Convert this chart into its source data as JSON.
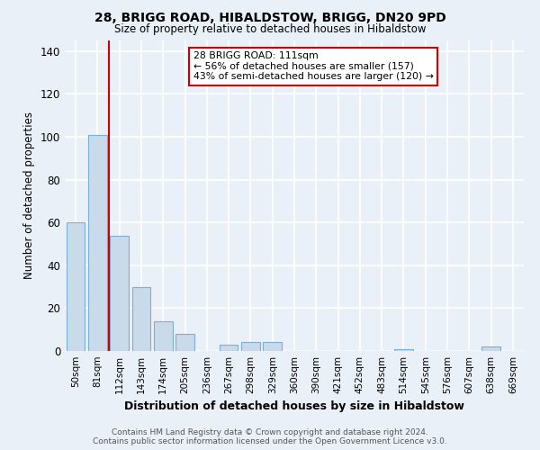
{
  "title": "28, BRIGG ROAD, HIBALDSTOW, BRIGG, DN20 9PD",
  "subtitle": "Size of property relative to detached houses in Hibaldstow",
  "xlabel": "Distribution of detached houses by size in Hibaldstow",
  "ylabel": "Number of detached properties",
  "categories": [
    "50sqm",
    "81sqm",
    "112sqm",
    "143sqm",
    "174sqm",
    "205sqm",
    "236sqm",
    "267sqm",
    "298sqm",
    "329sqm",
    "360sqm",
    "390sqm",
    "421sqm",
    "452sqm",
    "483sqm",
    "514sqm",
    "545sqm",
    "576sqm",
    "607sqm",
    "638sqm",
    "669sqm"
  ],
  "values": [
    60,
    101,
    54,
    30,
    14,
    8,
    0,
    3,
    4,
    4,
    0,
    0,
    0,
    0,
    0,
    1,
    0,
    0,
    0,
    2,
    0
  ],
  "bar_color": "#c9daea",
  "bar_edge_color": "#7bafd4",
  "vline_color": "#cc0000",
  "vline_x_index": 2,
  "annotation_box_text": "28 BRIGG ROAD: 111sqm\n← 56% of detached houses are smaller (157)\n43% of semi-detached houses are larger (120) →",
  "ylim": [
    0,
    145
  ],
  "yticks": [
    0,
    20,
    40,
    60,
    80,
    100,
    120,
    140
  ],
  "background_color": "#eaf0f8",
  "grid_color": "#ffffff",
  "fig_background": "#eaf0f8",
  "footer_line1": "Contains HM Land Registry data © Crown copyright and database right 2024.",
  "footer_line2": "Contains public sector information licensed under the Open Government Licence v3.0."
}
